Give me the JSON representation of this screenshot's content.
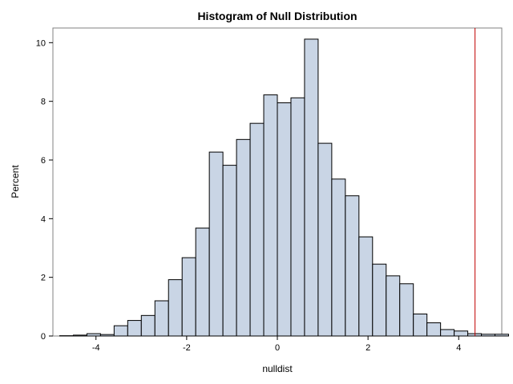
{
  "chart_data": {
    "type": "bar",
    "title": "Histogram of Null Distribution",
    "xlabel": "nulldist",
    "ylabel": "Percent",
    "xlim": [
      -4.95,
      4.95
    ],
    "ylim": [
      0,
      10.5
    ],
    "xticks": [
      -4,
      -2,
      0,
      2,
      4
    ],
    "yticks": [
      0,
      2,
      4,
      6,
      8,
      10
    ],
    "bin_width": 0.3,
    "bin_start": -4.8,
    "values": [
      0.01,
      0.03,
      0.08,
      0.05,
      0.35,
      0.53,
      0.7,
      1.2,
      1.92,
      2.67,
      3.68,
      6.27,
      5.82,
      6.7,
      7.25,
      8.22,
      7.95,
      8.12,
      10.12,
      6.57,
      5.35,
      4.78,
      3.38,
      2.45,
      2.05,
      1.78,
      0.75,
      0.45,
      0.22,
      0.17,
      0.08,
      0.06,
      0.06
    ],
    "reference_line_x": 4.36,
    "colors": {
      "bar_fill": "#c9d5e5",
      "bar_stroke": "#000000",
      "reference_line": "#c00000",
      "frame": "#808080"
    },
    "grid": false
  }
}
